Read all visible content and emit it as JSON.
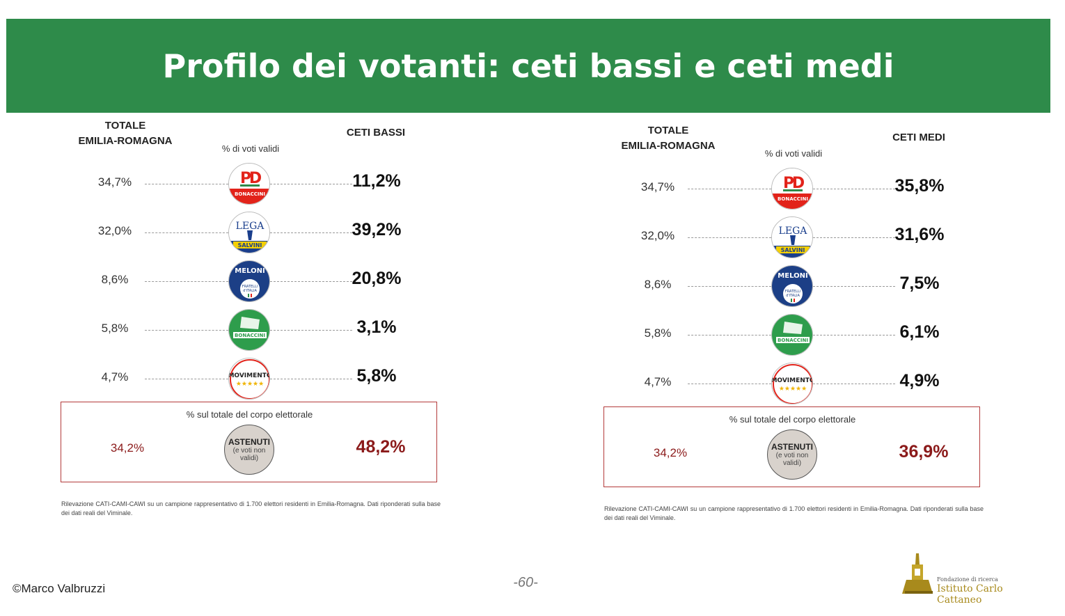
{
  "title": "Profilo dei votanti: ceti bassi e ceti medi",
  "colors": {
    "accent": "#2e8b4a",
    "abstain": "#8b1a1a"
  },
  "chart_data": [
    {
      "type": "table",
      "header_total": [
        "TOTALE",
        "EMILIA-ROMAGNA"
      ],
      "subheader": "% di voti validi",
      "group_label": "CETI BASSI",
      "rows": [
        {
          "party": "PD – Bonaccini Presidente",
          "logo": "pd-logo",
          "logo_text": "BONACCINI",
          "total": "34,7%",
          "value": "11,2%"
        },
        {
          "party": "Lega – Salvini",
          "logo": "lega-logo",
          "logo_text": "SALVINI",
          "total": "32,0%",
          "value": "39,2%"
        },
        {
          "party": "Fratelli d'Italia – Giorgia Meloni",
          "logo": "fdi-logo",
          "logo_text": "MELONI",
          "total": "8,6%",
          "value": "20,8%"
        },
        {
          "party": "Lista Bonaccini Presidente",
          "logo": "bonaccini-list-logo",
          "logo_text": "BONACCINI",
          "total": "5,8%",
          "value": "3,1%"
        },
        {
          "party": "Movimento 5 Stelle",
          "logo": "m5s-logo",
          "logo_text": "MOVIMENTO",
          "total": "4,7%",
          "value": "5,8%"
        }
      ],
      "abstention": {
        "caption": "% sul totale del corpo elettorale",
        "label": "ASTENUTI",
        "sublabel": "(e voti non validi)",
        "total": "34,2%",
        "value": "48,2%"
      },
      "note": "Rilevazione CATI-CAMI-CAWI su un campione rappresentativo di 1.700 elettori residenti in Emilia-Romagna. Dati riponderati sulla base dei dati reali del Viminale."
    },
    {
      "type": "table",
      "header_total": [
        "TOTALE",
        "EMILIA-ROMAGNA"
      ],
      "subheader": "% di voti validi",
      "group_label": "CETI MEDI",
      "rows": [
        {
          "party": "PD – Bonaccini Presidente",
          "logo": "pd-logo",
          "logo_text": "BONACCINI",
          "total": "34,7%",
          "value": "35,8%"
        },
        {
          "party": "Lega – Salvini",
          "logo": "lega-logo",
          "logo_text": "SALVINI",
          "total": "32,0%",
          "value": "31,6%"
        },
        {
          "party": "Fratelli d'Italia – Giorgia Meloni",
          "logo": "fdi-logo",
          "logo_text": "MELONI",
          "total": "8,6%",
          "value": "7,5%"
        },
        {
          "party": "Lista Bonaccini Presidente",
          "logo": "bonaccini-list-logo",
          "logo_text": "BONACCINI",
          "total": "5,8%",
          "value": "6,1%"
        },
        {
          "party": "Movimento 5 Stelle",
          "logo": "m5s-logo",
          "logo_text": "MOVIMENTO",
          "total": "4,7%",
          "value": "4,9%"
        }
      ],
      "abstention": {
        "caption": "% sul totale del corpo elettorale",
        "label": "ASTENUTI",
        "sublabel": "(e voti non validi)",
        "total": "34,2%",
        "value": "36,9%"
      },
      "note": "Rilevazione CATI-CAMI-CAWI su un campione rappresentativo di 1.700 elettori residenti in Emilia-Romagna. Dati riponderati sulla base dei dati reali del Viminale."
    }
  ],
  "footer": {
    "author": "©Marco Valbruzzi",
    "page": "-60-",
    "brand_small": "Fondazione di ricerca",
    "brand_name": "Istituto Carlo Cattaneo"
  }
}
